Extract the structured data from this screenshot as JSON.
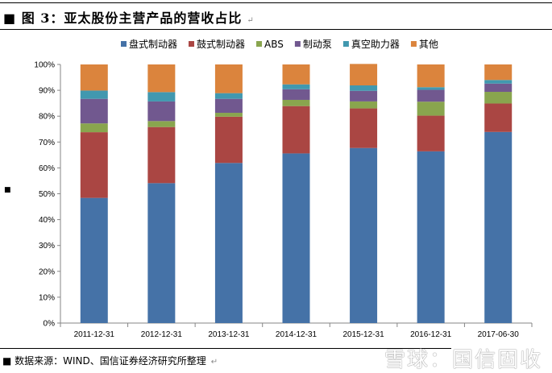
{
  "title": "■ 图 3：亚太股份主营产品的营收占比",
  "footer": "■ 数据来源：WIND、国信证券经济研究所整理",
  "watermark": "雪球：国信固收",
  "side_mark": "■",
  "chart_data": {
    "type": "bar",
    "stacked": true,
    "percent": true,
    "categories": [
      "2011-12-31",
      "2012-12-31",
      "2013-12-31",
      "2014-12-31",
      "2015-12-31",
      "2016-12-31",
      "2017-06-30"
    ],
    "yticks": [
      "0%",
      "10%",
      "20%",
      "30%",
      "40%",
      "50%",
      "60%",
      "70%",
      "80%",
      "90%",
      "100%"
    ],
    "ylim": [
      0,
      100
    ],
    "legend_position": "top",
    "grid": false,
    "series": [
      {
        "name": "盘式制动器",
        "color": "#4572A7",
        "values": [
          48.4,
          54.1,
          61.9,
          65.6,
          67.7,
          66.4,
          73.9
        ]
      },
      {
        "name": "鼓式制动器",
        "color": "#AA4643",
        "values": [
          25.4,
          21.7,
          17.9,
          18.3,
          15.3,
          13.8,
          11.0
        ]
      },
      {
        "name": "ABS",
        "color": "#89A54E",
        "values": [
          3.4,
          2.3,
          1.5,
          2.4,
          2.7,
          5.4,
          4.5
        ]
      },
      {
        "name": "制动泵",
        "color": "#71588F",
        "values": [
          9.5,
          7.6,
          5.4,
          4.1,
          4.1,
          4.6,
          3.2
        ]
      },
      {
        "name": "真空助力器",
        "color": "#4198AF",
        "values": [
          3.2,
          3.6,
          2.2,
          1.9,
          2.1,
          1.0,
          1.4
        ]
      },
      {
        "name": "其他",
        "color": "#DB843D",
        "values": [
          10.1,
          10.7,
          11.1,
          7.7,
          8.3,
          8.8,
          6.0
        ]
      }
    ]
  }
}
